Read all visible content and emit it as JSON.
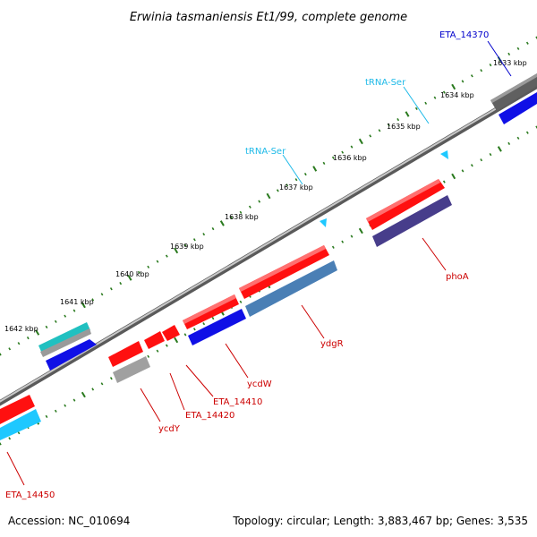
{
  "title": "Erwinia tasmaniensis Et1/99, complete genome",
  "footer": {
    "accession": "Accession: NC_010694",
    "summary": "Topology: circular; Length: 3,883,467 bp; Genes: 3,535"
  },
  "colors": {
    "backbone": "#8c8c8c",
    "tick": "#2a7a1e",
    "red_gene": "#ff1010",
    "blue_gene": "#1010e6",
    "steelblue_gene": "#4a7fb5",
    "slate_gene": "#473d8b",
    "cyan_gene": "#1ec8ff",
    "gray_gene": "#9a9a9a",
    "teal_gene": "#20c0c0",
    "darkgray_gene": "#555555",
    "label_red": "#cc0000",
    "label_blue": "#0000cc",
    "label_trna": "#1ebae8"
  },
  "scale_labels": [
    "1633 kbp",
    "1634 kbp",
    "1635 kbp",
    "1636 kbp",
    "1637 kbp",
    "1638 kbp",
    "1639 kbp",
    "1640 kbp",
    "1641 kbp",
    "1642 kbp"
  ],
  "gene_labels": {
    "eta_14370": "ETA_14370",
    "trna_ser_1": "tRNA-Ser",
    "trna_ser_2": "tRNA-Ser",
    "phoa": "phoA",
    "ydgr": "ydgR",
    "ycdw": "ycdW",
    "eta_14410": "ETA_14410",
    "eta_14420": "ETA_14420",
    "ycdy": "ycdY",
    "eta_14450": "ETA_14450"
  }
}
